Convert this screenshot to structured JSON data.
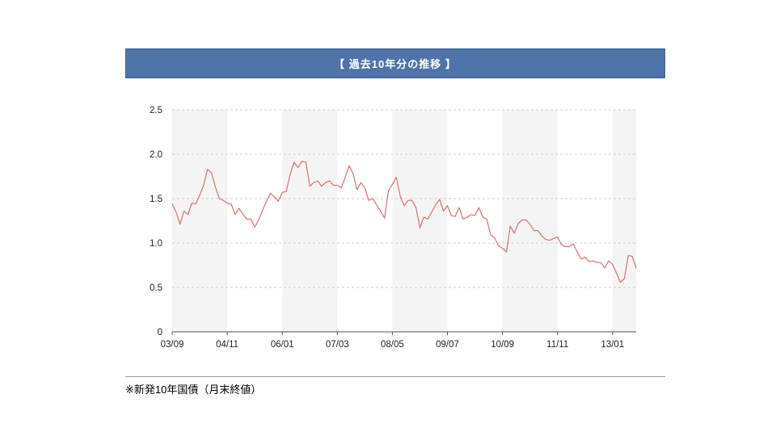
{
  "header": {
    "title": "【 過去10年分の推移 】"
  },
  "footer": {
    "note": "※新発10年国債（月末終値）"
  },
  "colors": {
    "header_bg": "#4e74a9",
    "header_border": "#3a5f96",
    "line": "#d9716c",
    "band": "#f4f4f4",
    "grid": "#cccccc",
    "axis": "#555555",
    "text": "#222222"
  },
  "chart_data": {
    "type": "line",
    "title": "【 過去10年分の推移 】",
    "xlabel": "",
    "ylabel": "",
    "ylim": [
      0,
      2.5
    ],
    "y_tick_values": [
      0,
      0.5,
      1.0,
      1.5,
      2.0,
      2.5
    ],
    "y_tick_labels": [
      "0",
      "0.5",
      "1.0",
      "1.5",
      "2.0",
      "2.5"
    ],
    "x_labels": [
      "03/09",
      "04/11",
      "06/01",
      "07/03",
      "08/05",
      "09/07",
      "10/09",
      "11/11",
      "13/01"
    ],
    "x_label_indices": [
      0,
      14,
      28,
      42,
      56,
      70,
      84,
      98,
      112
    ],
    "grid": "horizontal-dashed",
    "legend": "none",
    "background_bands": "alternating-vertical",
    "values": [
      1.44,
      1.35,
      1.21,
      1.36,
      1.32,
      1.45,
      1.44,
      1.54,
      1.65,
      1.83,
      1.79,
      1.63,
      1.5,
      1.48,
      1.45,
      1.44,
      1.32,
      1.39,
      1.32,
      1.27,
      1.27,
      1.18,
      1.26,
      1.37,
      1.47,
      1.56,
      1.52,
      1.47,
      1.57,
      1.58,
      1.77,
      1.91,
      1.85,
      1.92,
      1.91,
      1.64,
      1.68,
      1.7,
      1.64,
      1.68,
      1.7,
      1.65,
      1.65,
      1.62,
      1.74,
      1.87,
      1.78,
      1.6,
      1.68,
      1.62,
      1.48,
      1.5,
      1.43,
      1.36,
      1.28,
      1.59,
      1.66,
      1.74,
      1.53,
      1.42,
      1.48,
      1.48,
      1.4,
      1.17,
      1.29,
      1.27,
      1.35,
      1.43,
      1.49,
      1.36,
      1.42,
      1.31,
      1.3,
      1.4,
      1.27,
      1.29,
      1.32,
      1.31,
      1.4,
      1.29,
      1.27,
      1.09,
      1.06,
      0.97,
      0.94,
      0.9,
      1.19,
      1.11,
      1.22,
      1.26,
      1.26,
      1.21,
      1.14,
      1.14,
      1.08,
      1.04,
      1.03,
      1.05,
      1.07,
      0.98,
      0.96,
      0.96,
      0.99,
      0.9,
      0.82,
      0.84,
      0.79,
      0.8,
      0.78,
      0.78,
      0.72,
      0.8,
      0.76,
      0.66,
      0.56,
      0.6,
      0.86,
      0.85,
      0.72
    ]
  }
}
